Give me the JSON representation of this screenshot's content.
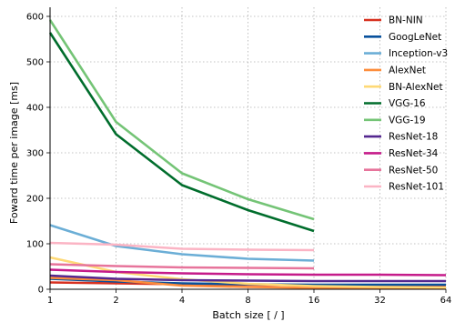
{
  "chart_data": {
    "type": "line",
    "xlabel": "Batch size [ / ]",
    "ylabel": "Foward time per image [ms]",
    "x_scale": "log2",
    "x": [
      1,
      2,
      4,
      8,
      16,
      32,
      64
    ],
    "x_ticks": [
      "1",
      "2",
      "4",
      "8",
      "16",
      "32",
      "64"
    ],
    "xlim": [
      1,
      64
    ],
    "ylim": [
      0,
      620
    ],
    "y_ticks": [
      "0",
      "100",
      "200",
      "300",
      "400",
      "500",
      "600"
    ],
    "grid": true,
    "legend_position": "top-right",
    "series": [
      {
        "name": "BN-NIN",
        "color": "#d7301f",
        "x": [
          1,
          2,
          4,
          8,
          16,
          32,
          64
        ],
        "values": [
          15,
          13,
          11,
          10,
          9,
          8,
          8
        ]
      },
      {
        "name": "GoogLeNet",
        "color": "#08519c",
        "x": [
          1,
          2,
          4,
          8,
          16,
          32,
          64
        ],
        "values": [
          23,
          17,
          13,
          11,
          10,
          10,
          10
        ]
      },
      {
        "name": "Inception-v3",
        "color": "#6baed6",
        "x": [
          1,
          2,
          4,
          8,
          16
        ],
        "values": [
          141,
          95,
          77,
          67,
          63
        ]
      },
      {
        "name": "AlexNet",
        "color": "#fd8d3c",
        "x": [
          1,
          2,
          4,
          8,
          16,
          32,
          64
        ],
        "values": [
          25,
          20,
          8,
          5,
          3,
          2,
          2
        ]
      },
      {
        "name": "BN-AlexNet",
        "color": "#fed976",
        "x": [
          1,
          2,
          4,
          8,
          16,
          32,
          64
        ],
        "values": [
          70,
          38,
          22,
          12,
          7,
          5,
          4
        ]
      },
      {
        "name": "VGG-16",
        "color": "#006d2c",
        "x": [
          1,
          2,
          4,
          8,
          16
        ],
        "values": [
          564,
          341,
          229,
          174,
          128
        ]
      },
      {
        "name": "VGG-19",
        "color": "#74c476",
        "x": [
          1,
          2,
          4,
          8,
          16
        ],
        "values": [
          592,
          368,
          255,
          198,
          154
        ]
      },
      {
        "name": "ResNet-18",
        "color": "#54278f",
        "x": [
          1,
          2,
          4,
          8,
          16,
          32,
          64
        ],
        "values": [
          30,
          23,
          20,
          19,
          18,
          18,
          18
        ]
      },
      {
        "name": "ResNet-34",
        "color": "#c51b8a",
        "x": [
          1,
          2,
          4,
          8,
          16,
          32,
          64
        ],
        "values": [
          43,
          38,
          35,
          33,
          32,
          32,
          31
        ]
      },
      {
        "name": "ResNet-50",
        "color": "#e7749b",
        "x": [
          1,
          2,
          4,
          8,
          16
        ],
        "values": [
          55,
          51,
          48,
          47,
          46
        ]
      },
      {
        "name": "ResNet-101",
        "color": "#fbb4c4",
        "x": [
          1,
          2,
          4,
          8,
          16
        ],
        "values": [
          102,
          98,
          89,
          87,
          86
        ]
      }
    ]
  }
}
